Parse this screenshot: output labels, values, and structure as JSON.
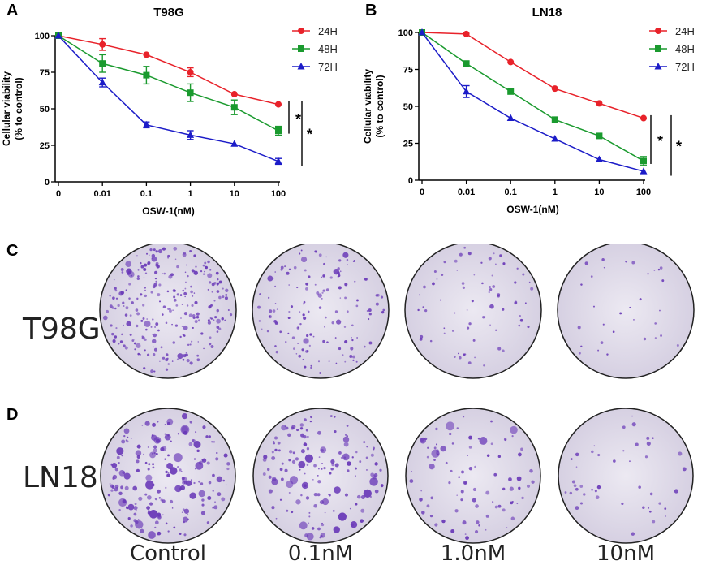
{
  "panels": {
    "a": "A",
    "b": "B",
    "c": "C",
    "d": "D"
  },
  "chart_data": [
    {
      "type": "line",
      "title": "T98G",
      "xlabel": "OSW-1(nM)",
      "ylabel": [
        "Cellular viability",
        "(% to control)"
      ],
      "categories": [
        "0",
        "0.01",
        "0.1",
        "1",
        "10",
        "100"
      ],
      "ylim": [
        0,
        100
      ],
      "yticks": [
        0,
        25,
        50,
        75,
        100
      ],
      "legend_position": "top-right",
      "series": [
        {
          "name": "24H",
          "color": "#e8222a",
          "marker": "circle",
          "values": [
            100,
            94,
            87,
            75,
            60,
            53
          ],
          "errors": [
            0,
            4,
            0,
            3,
            0,
            0
          ]
        },
        {
          "name": "48H",
          "color": "#1a9a2e",
          "marker": "square",
          "values": [
            100,
            81,
            73,
            61,
            51,
            35
          ],
          "errors": [
            0,
            6,
            6,
            6,
            5,
            3
          ]
        },
        {
          "name": "72H",
          "color": "#1c1cc8",
          "marker": "triangle",
          "values": [
            100,
            68,
            39,
            32,
            26,
            14
          ],
          "errors": [
            0,
            3,
            2,
            3,
            0,
            2
          ]
        }
      ],
      "significance": [
        "*",
        "*"
      ]
    },
    {
      "type": "line",
      "title": "LN18",
      "xlabel": "OSW-1(nM)",
      "ylabel": [
        "Cellular viability",
        "(% to control)"
      ],
      "categories": [
        "0",
        "0.01",
        "0.1",
        "1",
        "10",
        "100"
      ],
      "ylim": [
        0,
        100
      ],
      "yticks": [
        0,
        25,
        50,
        75,
        100
      ],
      "legend_position": "top-right",
      "series": [
        {
          "name": "24H",
          "color": "#e8222a",
          "marker": "circle",
          "values": [
            100,
            99,
            80,
            62,
            52,
            42
          ],
          "errors": [
            0,
            0,
            0,
            0,
            0,
            0
          ]
        },
        {
          "name": "48H",
          "color": "#1a9a2e",
          "marker": "square",
          "values": [
            100,
            79,
            60,
            41,
            30,
            13
          ],
          "errors": [
            0,
            0,
            0,
            0,
            0,
            3
          ]
        },
        {
          "name": "72H",
          "color": "#1c1cc8",
          "marker": "triangle",
          "values": [
            100,
            60,
            42,
            28,
            14,
            6
          ],
          "errors": [
            0,
            4,
            0,
            0,
            0,
            0
          ]
        }
      ],
      "significance": [
        "*",
        "*"
      ]
    }
  ],
  "colony_assay": {
    "rows": [
      {
        "label": "T98G",
        "densities": [
          1.0,
          0.55,
          0.28,
          0.12
        ]
      },
      {
        "label": "LN18",
        "densities": [
          1.0,
          0.75,
          0.45,
          0.22
        ]
      }
    ],
    "columns": [
      "Control",
      "0.1nM",
      "1.0nM",
      "10nM"
    ],
    "colors": {
      "well_bg": "#e3dfec",
      "colony": "#6a3ab8"
    }
  }
}
